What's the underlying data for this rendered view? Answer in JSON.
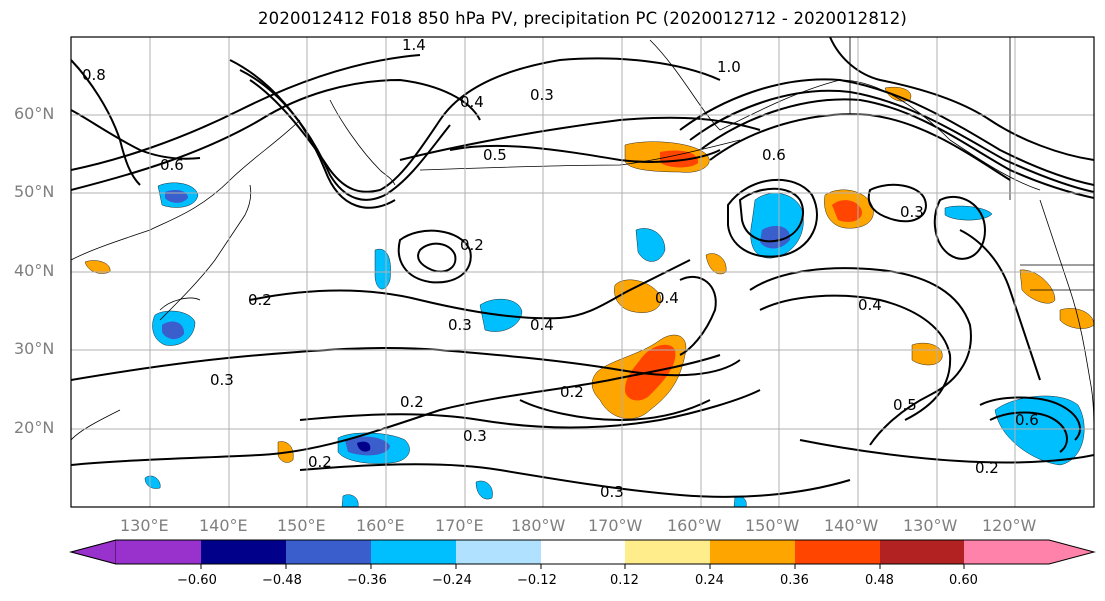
{
  "title": "2020012412 F018 850 hPa PV, precipitation PC (2020012712 - 2020012812)",
  "lat_labels": [
    "60°N",
    "50°N",
    "40°N",
    "30°N",
    "20°N"
  ],
  "lon_labels": [
    "130°E",
    "140°E",
    "150°E",
    "160°E",
    "170°E",
    "180°W",
    "170°W",
    "160°W",
    "150°W",
    "140°W",
    "130°W",
    "120°W"
  ],
  "colorbar": {
    "ticks": [
      "−0.60",
      "−0.48",
      "−0.36",
      "−0.24",
      "−0.12",
      "0.12",
      "0.24",
      "0.36",
      "0.48",
      "0.60"
    ],
    "colors": [
      "#9932cc",
      "#00008b",
      "#3a5fcd",
      "#00bfff",
      "#b0e2ff",
      "#ffffff",
      "#ffec8b",
      "#ffa500",
      "#ff4500",
      "#b22222",
      "#ff82ab"
    ]
  },
  "contour_labels": [
    "1.0",
    "1.4",
    "0.8",
    "0.6",
    "0.5",
    "0.4",
    "0.3",
    "0.2",
    "0.2",
    "0.3",
    "0.4",
    "0.3",
    "0.2",
    "0.3",
    "0.4",
    "0.5",
    "0.6",
    "0.3",
    "0.2",
    "0.2",
    "0.3",
    "0.4",
    "0.6",
    "0.2"
  ]
}
